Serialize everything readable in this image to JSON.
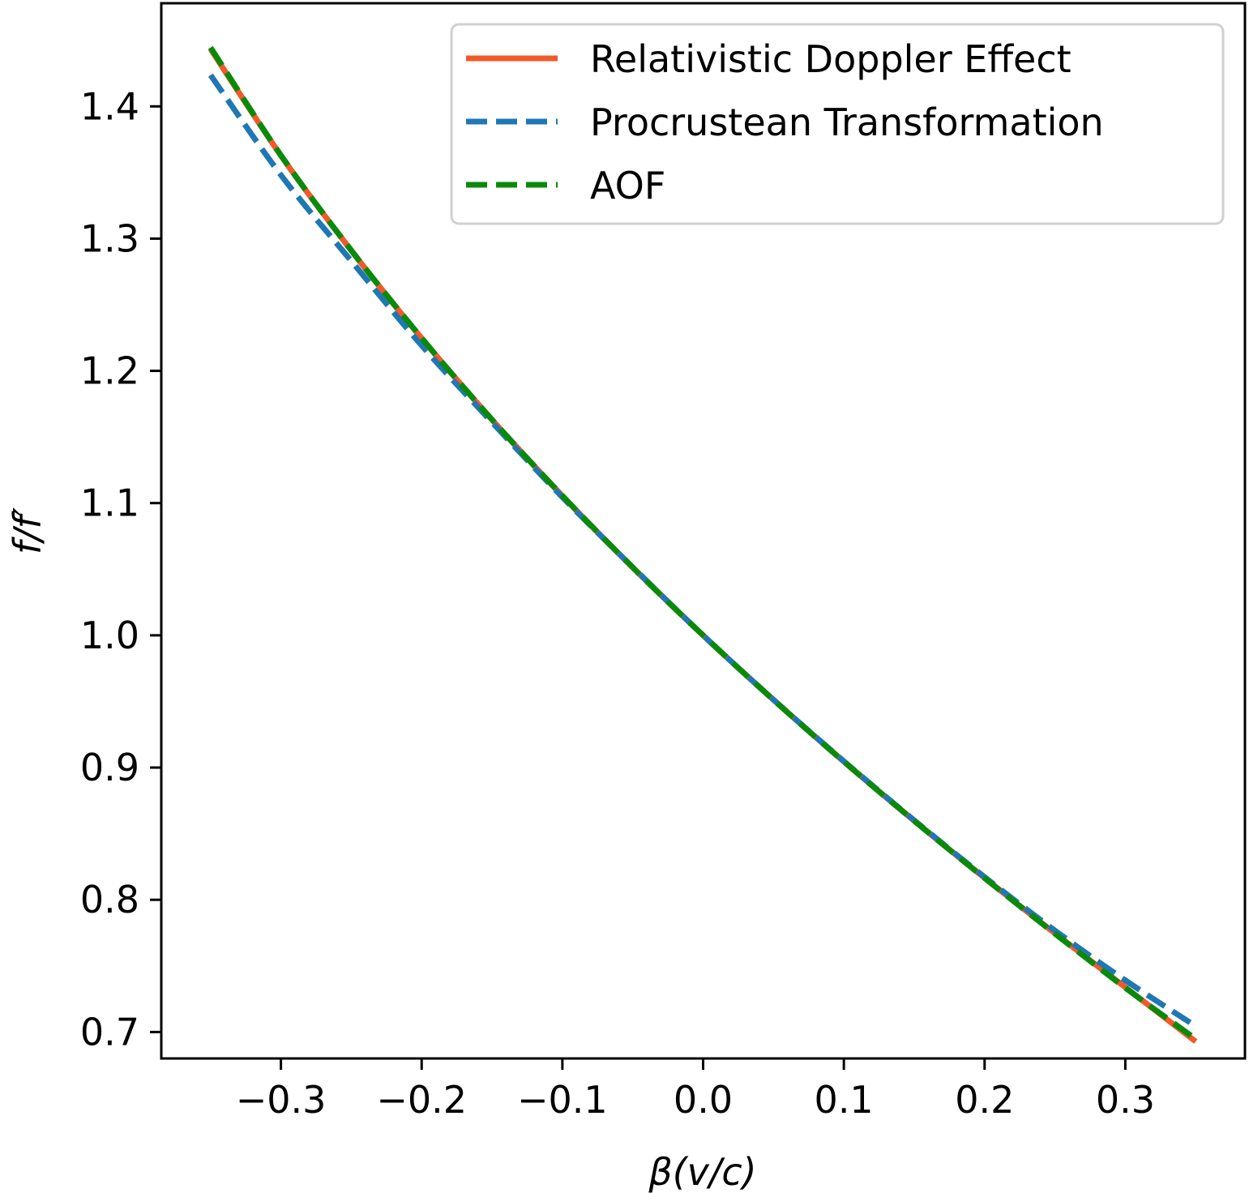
{
  "chart_data": {
    "type": "line",
    "title": "",
    "xlabel": "β(v/c)",
    "ylabel": "f/f′",
    "xlim": [
      -0.385,
      0.385
    ],
    "ylim": [
      0.68,
      1.478
    ],
    "grid": false,
    "legend_position": "top-right",
    "x_ticks": [
      -0.3,
      -0.2,
      -0.1,
      0.0,
      0.1,
      0.2,
      0.3
    ],
    "x_tick_labels": [
      "−0.3",
      "−0.2",
      "−0.1",
      "0.0",
      "0.1",
      "0.2",
      "0.3"
    ],
    "y_ticks": [
      0.7,
      0.8,
      0.9,
      1.0,
      1.1,
      1.2,
      1.3,
      1.4
    ],
    "y_tick_labels": [
      "0.7",
      "0.8",
      "0.9",
      "1.0",
      "1.1",
      "1.2",
      "1.3",
      "1.4"
    ],
    "x": [
      -0.35,
      -0.3,
      -0.25,
      -0.2,
      -0.15,
      -0.1,
      -0.05,
      0.0,
      0.05,
      0.1,
      0.15,
      0.2,
      0.25,
      0.3,
      0.35
    ],
    "series": [
      {
        "name": "Relativistic Doppler Effect",
        "color": "#f05a28",
        "dash": "solid",
        "values": [
          1.4434,
          1.3628,
          1.291,
          1.2247,
          1.1631,
          1.1055,
          1.0513,
          1.0,
          0.9512,
          0.9045,
          0.8597,
          0.8165,
          0.7746,
          0.7338,
          0.6928
        ]
      },
      {
        "name": "Procrustean Transformation",
        "color": "#1f77b4",
        "dash": "dashed",
        "values": [
          1.4237,
          1.3481,
          1.2831,
          1.2192,
          1.1611,
          1.1045,
          1.0515,
          1.0,
          0.9513,
          0.9048,
          0.8601,
          0.8172,
          0.7767,
          0.7391,
          0.7044
        ]
      },
      {
        "name": "AOF",
        "color": "#0a8a0a",
        "dash": "dashed",
        "values": [
          1.4445,
          1.363,
          1.2911,
          1.2248,
          1.1631,
          1.1055,
          1.0513,
          1.0,
          0.9512,
          0.9045,
          0.8597,
          0.8164,
          0.7744,
          0.7334,
          0.6947
        ]
      }
    ]
  }
}
